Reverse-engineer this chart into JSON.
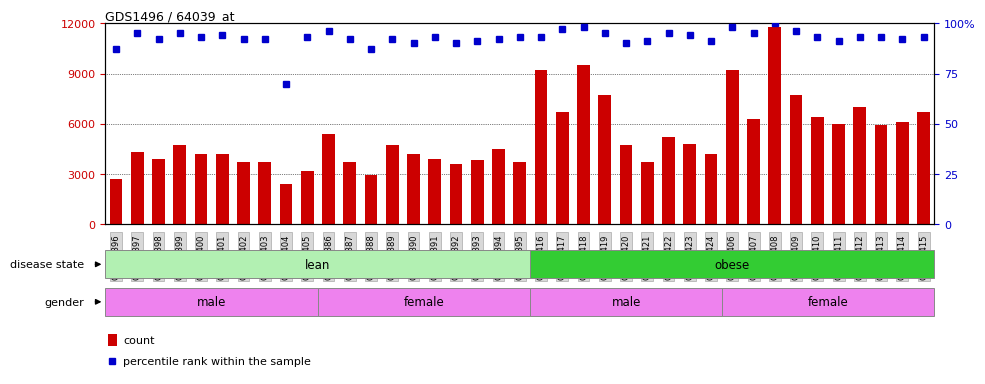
{
  "title": "GDS1496 / 64039_at",
  "samples": [
    "GSM47396",
    "GSM47397",
    "GSM47398",
    "GSM47399",
    "GSM47400",
    "GSM47401",
    "GSM47402",
    "GSM47403",
    "GSM47404",
    "GSM47405",
    "GSM47386",
    "GSM47387",
    "GSM47388",
    "GSM47389",
    "GSM47390",
    "GSM47391",
    "GSM47392",
    "GSM47393",
    "GSM47394",
    "GSM47395",
    "GSM47416",
    "GSM47417",
    "GSM47418",
    "GSM47419",
    "GSM47420",
    "GSM47421",
    "GSM47422",
    "GSM47423",
    "GSM47424",
    "GSM47406",
    "GSM47407",
    "GSM47408",
    "GSM47409",
    "GSM47410",
    "GSM47411",
    "GSM47412",
    "GSM47413",
    "GSM47414",
    "GSM47415"
  ],
  "counts": [
    2700,
    4300,
    3900,
    4700,
    4200,
    4200,
    3700,
    3700,
    2400,
    3200,
    5400,
    3700,
    2950,
    4700,
    4200,
    3900,
    3600,
    3800,
    4500,
    3700,
    9200,
    6700,
    9500,
    7700,
    4700,
    3700,
    5200,
    4800,
    4200,
    9200,
    6300,
    11800,
    7700,
    6400,
    6000,
    7000,
    5900,
    6100,
    6700
  ],
  "percentiles": [
    87,
    95,
    92,
    95,
    93,
    94,
    92,
    92,
    70,
    93,
    96,
    92,
    87,
    92,
    90,
    93,
    90,
    91,
    92,
    93,
    93,
    97,
    98,
    95,
    90,
    91,
    95,
    94,
    91,
    98,
    95,
    100,
    96,
    93,
    91,
    93,
    93,
    92,
    93
  ],
  "bar_color": "#cc0000",
  "dot_color": "#0000cc",
  "ylim_left": [
    0,
    12000
  ],
  "ylim_right": [
    0,
    100
  ],
  "yticks_left": [
    0,
    3000,
    6000,
    9000,
    12000
  ],
  "yticks_right": [
    0,
    25,
    50,
    75,
    100
  ],
  "lean_color": "#b2f0b2",
  "obese_color": "#33cc33",
  "male_color": "#ee82ee",
  "female_color": "#ee82ee",
  "legend_count_label": "count",
  "legend_percentile_label": "percentile rank within the sample",
  "bar_width": 0.6,
  "background_color": "#ffffff",
  "tick_bg_color": "#d8d8d8",
  "lean_n": 20,
  "obese_n": 19,
  "male_lean_n": 10,
  "female_lean_n": 10,
  "male_obese_n": 9,
  "female_obese_n": 10
}
